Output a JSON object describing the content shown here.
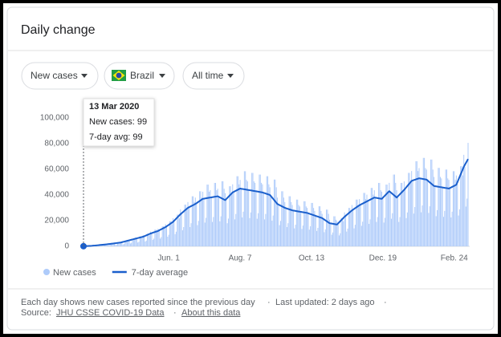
{
  "header": {
    "title": "Daily change"
  },
  "filters": [
    "New cases",
    "Brazil",
    "All time"
  ],
  "tooltip": {
    "date": "13 Mar 2020",
    "lines": [
      "New cases: 99",
      "7-day avg: 99"
    ]
  },
  "footer": {
    "note": "Each day shows new cases reported since the previous day",
    "updated": "Last updated: 2 days ago",
    "source_label": "Source:",
    "source_link": "JHU CSSE COVID-19 Data",
    "about_link": "About this data"
  },
  "chart_data": {
    "type": "bar",
    "categories": [
      null,
      null,
      null,
      null,
      null,
      null,
      null,
      null,
      null,
      null,
      null,
      null,
      null,
      null,
      null,
      null,
      null,
      null,
      null,
      null,
      null,
      null,
      null,
      null,
      null,
      null,
      null,
      null,
      null,
      null,
      null,
      null,
      null,
      null,
      null,
      null,
      null,
      null,
      null,
      null,
      null,
      null,
      null,
      null,
      null,
      null,
      null,
      null,
      null,
      null,
      null,
      null,
      null,
      null,
      null,
      null,
      null,
      null,
      null,
      null,
      null,
      null,
      null,
      null,
      null,
      null,
      null,
      null,
      null,
      null,
      null,
      null,
      null,
      null,
      null,
      null,
      null,
      null,
      null,
      null,
      "Jun. 1",
      null,
      null,
      null,
      null,
      null,
      null,
      null,
      null,
      null,
      null,
      null,
      null,
      null,
      null,
      null,
      null,
      null,
      null,
      null,
      null,
      null,
      null,
      null,
      null,
      null,
      null,
      null,
      null,
      null,
      null,
      null,
      null,
      null,
      null,
      null,
      null,
      null,
      null,
      null,
      null,
      null,
      null,
      null,
      null,
      null,
      null,
      null,
      null,
      null,
      null,
      null,
      null,
      null,
      null,
      null,
      null,
      null,
      null,
      null,
      null,
      null,
      null,
      null,
      null,
      null,
      null,
      "Aug. 7",
      null,
      null,
      null,
      null,
      null,
      null,
      null,
      null,
      null,
      null,
      null,
      null,
      null,
      null,
      null,
      null,
      null,
      null,
      null,
      null,
      null,
      null,
      null,
      null,
      null,
      null,
      null,
      null,
      null,
      null,
      null,
      null,
      null,
      null,
      null,
      null,
      null,
      null,
      null,
      null,
      null,
      null,
      null,
      null,
      null,
      null,
      null,
      null,
      null,
      null,
      null,
      null,
      null,
      null,
      null,
      null,
      null,
      null,
      null,
      null,
      null,
      null,
      null,
      null,
      null,
      null,
      "Oct. 13",
      null,
      null,
      null,
      null,
      null,
      null,
      null,
      null,
      null,
      null,
      null,
      null,
      null,
      null,
      null,
      null,
      null,
      null,
      null,
      null,
      null,
      null,
      null,
      null,
      null,
      null,
      null,
      null,
      null,
      null,
      null,
      null,
      null,
      null,
      null,
      null,
      null,
      null,
      null,
      null,
      null,
      null,
      null,
      null,
      null,
      null,
      null,
      null,
      null,
      null,
      null,
      null,
      null,
      null,
      null,
      null,
      null,
      null,
      null,
      null,
      null,
      null,
      null,
      null,
      null,
      null,
      "Dec. 19",
      null,
      null,
      null,
      null,
      null,
      null,
      null,
      null,
      null,
      null,
      null,
      null,
      null,
      null,
      null,
      null,
      null,
      null,
      null,
      null,
      null,
      null,
      null,
      null,
      null,
      null,
      null,
      null,
      null,
      null,
      null,
      null,
      null,
      null,
      null,
      null,
      null,
      null,
      null,
      null,
      null,
      null,
      null,
      null,
      null,
      null,
      null,
      null,
      null,
      null,
      null,
      null,
      null,
      null,
      null,
      null,
      null,
      null,
      null,
      null,
      null,
      null,
      null,
      null,
      null,
      null,
      "Feb. 24",
      null,
      null,
      null,
      null,
      null,
      null,
      null,
      null,
      null,
      null,
      null,
      null,
      null
    ],
    "series": [
      {
        "name": "New cases",
        "type": "bar",
        "color": "#aecbfa",
        "values": [
          99,
          150,
          75,
          90,
          195,
          195,
          170,
          400,
          350,
          175,
          210,
          455,
          455,
          400,
          1040,
          900,
          450,
          540,
          1170,
          1170,
          1040,
          1730,
          1500,
          750,
          900,
          1950,
          1950,
          1730,
          2530,
          2200,
          1100,
          1320,
          2860,
          2860,
          2530,
          3450,
          3000,
          1500,
          1800,
          3900,
          3900,
          3450,
          5180,
          4500,
          2250,
          2700,
          5850,
          5850,
          5180,
          6900,
          6000,
          3000,
          3600,
          7800,
          7800,
          6900,
          8630,
          7500,
          3750,
          4500,
          9750,
          9750,
          8630,
          11500,
          10000,
          5000,
          6000,
          13000,
          13000,
          11500,
          13800,
          12000,
          6000,
          7200,
          15600,
          15600,
          13800,
          17250,
          15000,
          7500,
          9000,
          19500,
          19500,
          17250,
          21850,
          19000,
          9500,
          11400,
          24700,
          24700,
          21850,
          28750,
          25000,
          12500,
          15000,
          32500,
          32500,
          28750,
          34500,
          30000,
          15000,
          18000,
          39000,
          39000,
          34500,
          37950,
          33000,
          16500,
          19800,
          42900,
          42900,
          37950,
          42550,
          37000,
          18500,
          22200,
          48100,
          48100,
          42550,
          43700,
          38000,
          19000,
          22800,
          49400,
          49400,
          43700,
          44850,
          39000,
          19500,
          23400,
          50700,
          50700,
          44850,
          41400,
          36000,
          18000,
          21600,
          46800,
          46800,
          41400,
          48300,
          42000,
          21000,
          25200,
          54600,
          54600,
          48300,
          51750,
          45000,
          22500,
          27000,
          58500,
          58500,
          51750,
          50600,
          44000,
          22000,
          26400,
          57200,
          57200,
          50600,
          49450,
          43000,
          21500,
          25800,
          55900,
          55900,
          49450,
          48300,
          42000,
          21000,
          25200,
          54600,
          54600,
          48300,
          46000,
          40000,
          20000,
          24000,
          52000,
          52000,
          46000,
          37950,
          33000,
          16500,
          19800,
          42900,
          42900,
          37950,
          34500,
          30000,
          15000,
          18000,
          39000,
          39000,
          34500,
          32200,
          28000,
          14000,
          16800,
          36400,
          36400,
          32200,
          31050,
          27000,
          13500,
          16200,
          35100,
          35100,
          31050,
          29900,
          26000,
          13000,
          15600,
          33800,
          33800,
          29900,
          27600,
          24000,
          12000,
          14400,
          31200,
          31200,
          27600,
          25300,
          22000,
          11000,
          13200,
          28600,
          28600,
          25300,
          20700,
          18000,
          9000,
          10800,
          23400,
          23400,
          20700,
          19550,
          17000,
          8500,
          10200,
          22100,
          22100,
          19550,
          26450,
          23000,
          11500,
          13800,
          29900,
          29900,
          26450,
          32200,
          28000,
          14000,
          16800,
          36400,
          36400,
          32200,
          36800,
          32000,
          16000,
          19200,
          41600,
          41600,
          36800,
          40250,
          35000,
          17500,
          21000,
          45500,
          45500,
          40250,
          43700,
          38000,
          19000,
          22800,
          49400,
          49400,
          43700,
          42550,
          37000,
          18500,
          22200,
          48100,
          48100,
          42550,
          49450,
          43000,
          21500,
          25800,
          55900,
          55900,
          49450,
          43700,
          38000,
          19000,
          22800,
          49400,
          49400,
          43700,
          50600,
          44000,
          22000,
          26400,
          57200,
          57200,
          50600,
          58650,
          51000,
          25500,
          30600,
          66300,
          66300,
          58650,
          60950,
          53000,
          26500,
          31800,
          68900,
          68900,
          60950,
          59800,
          52000,
          26000,
          31200,
          67600,
          67600,
          59800,
          54050,
          47000,
          23500,
          28200,
          61100,
          61100,
          54050,
          52900,
          46000,
          23000,
          27600,
          59800,
          59800,
          52900,
          51750,
          45000,
          22500,
          27000,
          58500,
          58500,
          51750,
          55200,
          48000,
          24000,
          28800,
          62400,
          62400,
          55200,
          71300,
          62000,
          31000,
          37200,
          80600
        ]
      },
      {
        "name": "7-day average",
        "type": "line",
        "color": "#1a5fcc",
        "values": [
          99,
          180,
          210,
          240,
          260,
          290,
          320,
          350,
          430,
          510,
          590,
          660,
          740,
          820,
          900,
          990,
          1070,
          1160,
          1240,
          1330,
          1410,
          1500,
          1600,
          1700,
          1800,
          1900,
          2000,
          2100,
          2200,
          2310,
          2430,
          2540,
          2660,
          2770,
          2890,
          3000,
          3210,
          3430,
          3640,
          3860,
          4070,
          4290,
          4500,
          4710,
          4930,
          5140,
          5360,
          5570,
          5790,
          6000,
          6210,
          6430,
          6640,
          6860,
          7070,
          7290,
          7500,
          7860,
          8210,
          8570,
          8930,
          9290,
          9640,
          10000,
          10290,
          10570,
          10860,
          11140,
          11430,
          11710,
          12000,
          12430,
          12860,
          13290,
          13710,
          14140,
          14570,
          15000,
          15570,
          16140,
          16710,
          17290,
          17860,
          18430,
          19000,
          19860,
          20710,
          21570,
          22430,
          23290,
          24140,
          25000,
          25710,
          26430,
          27140,
          27860,
          28570,
          29290,
          30000,
          30430,
          30860,
          31290,
          31710,
          32140,
          32570,
          33000,
          33570,
          34140,
          34710,
          35290,
          35860,
          36430,
          37000,
          37140,
          37290,
          37430,
          37570,
          37710,
          37860,
          38000,
          38140,
          38290,
          38430,
          38570,
          38710,
          38860,
          39000,
          38570,
          38140,
          37710,
          37290,
          36860,
          36430,
          36000,
          36860,
          37710,
          38570,
          39430,
          40290,
          41140,
          42000,
          42430,
          42860,
          43290,
          43710,
          44140,
          44570,
          45000,
          44860,
          44710,
          44570,
          44430,
          44290,
          44140,
          44000,
          43860,
          43710,
          43570,
          43430,
          43290,
          43140,
          43000,
          42860,
          42710,
          42570,
          42430,
          42290,
          42140,
          42000,
          41710,
          41430,
          41140,
          40860,
          40570,
          40290,
          40000,
          39000,
          38000,
          37000,
          36000,
          35000,
          34000,
          33000,
          32570,
          32140,
          31710,
          31290,
          30860,
          30430,
          30000,
          29710,
          29430,
          29140,
          28860,
          28570,
          28290,
          28000,
          27860,
          27710,
          27570,
          27430,
          27290,
          27140,
          27000,
          26860,
          26710,
          26570,
          26430,
          26290,
          26140,
          26000,
          25710,
          25430,
          25140,
          24860,
          24570,
          24290,
          24000,
          23710,
          23430,
          23140,
          22860,
          22570,
          22290,
          22000,
          21430,
          20860,
          20290,
          19710,
          19140,
          18570,
          18000,
          17860,
          17710,
          17570,
          17430,
          17290,
          17140,
          17000,
          17860,
          18710,
          19570,
          20430,
          21290,
          22140,
          23000,
          23710,
          24430,
          25140,
          25860,
          26570,
          27290,
          28000,
          28570,
          29140,
          29710,
          30290,
          30860,
          31430,
          32000,
          32430,
          32860,
          33290,
          33710,
          34140,
          34570,
          35000,
          35430,
          35860,
          36290,
          36710,
          37140,
          37570,
          38000,
          37860,
          37710,
          37570,
          37430,
          37290,
          37140,
          37000,
          37860,
          38710,
          39570,
          40430,
          41290,
          42140,
          43000,
          42290,
          41570,
          40860,
          40140,
          39430,
          38710,
          38000,
          38860,
          39710,
          40570,
          41430,
          42290,
          43140,
          44000,
          45000,
          46000,
          47000,
          48000,
          49000,
          50000,
          51000,
          51290,
          51570,
          51860,
          52140,
          52430,
          52710,
          53000,
          52860,
          52710,
          52570,
          52430,
          52290,
          52140,
          52000,
          51290,
          50570,
          49860,
          49140,
          48430,
          47710,
          47000,
          46860,
          46710,
          46570,
          46430,
          46290,
          46140,
          46000,
          45860,
          45710,
          45570,
          45430,
          45290,
          45140,
          45000,
          45430,
          45860,
          46290,
          46710,
          47140,
          47570,
          48000,
          50000,
          52000,
          54000,
          56000,
          58000,
          60000,
          62000,
          63500,
          65000,
          66500,
          68000
        ]
      }
    ],
    "ylim": [
      0,
      100000
    ],
    "yticks": [
      0,
      {
        "value": 20000,
        "label": "20,000"
      },
      {
        "value": 40000,
        "label": "40,000"
      },
      {
        "value": 60000,
        "label": "60,000"
      },
      {
        "value": 80000,
        "label": "80,000"
      },
      {
        "value": 100000,
        "label": "100,000"
      }
    ],
    "grid": false
  }
}
